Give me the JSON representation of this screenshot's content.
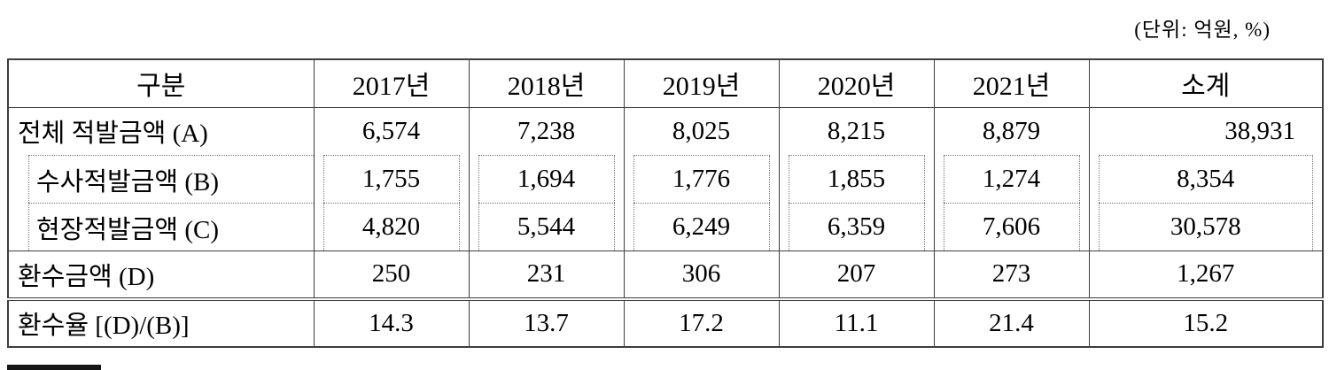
{
  "unit_note": "(단위: 억원, %)",
  "table": {
    "columns": [
      "구분",
      "2017년",
      "2018년",
      "2019년",
      "2020년",
      "2021년",
      "소계"
    ],
    "rows": [
      {
        "label": "전체 적발금액 (A)",
        "type": "main",
        "values": [
          "6,574",
          "7,238",
          "8,025",
          "8,215",
          "8,879",
          "38,931"
        ]
      },
      {
        "label": "수사적발금액 (B)",
        "type": "sub",
        "values": [
          "1,755",
          "1,694",
          "1,776",
          "1,855",
          "1,274",
          "8,354"
        ]
      },
      {
        "label": "현장적발금액 (C)",
        "type": "sub",
        "values": [
          "4,820",
          "5,544",
          "6,249",
          "6,359",
          "7,606",
          "30,578"
        ]
      },
      {
        "label": "환수금액 (D)",
        "type": "main",
        "values": [
          "250",
          "231",
          "306",
          "207",
          "273",
          "1,267"
        ]
      },
      {
        "label": "환수율 [(D)/(B)]",
        "type": "ratio",
        "values": [
          "14.3",
          "13.7",
          "17.2",
          "11.1",
          "21.4",
          "15.2"
        ]
      }
    ]
  }
}
